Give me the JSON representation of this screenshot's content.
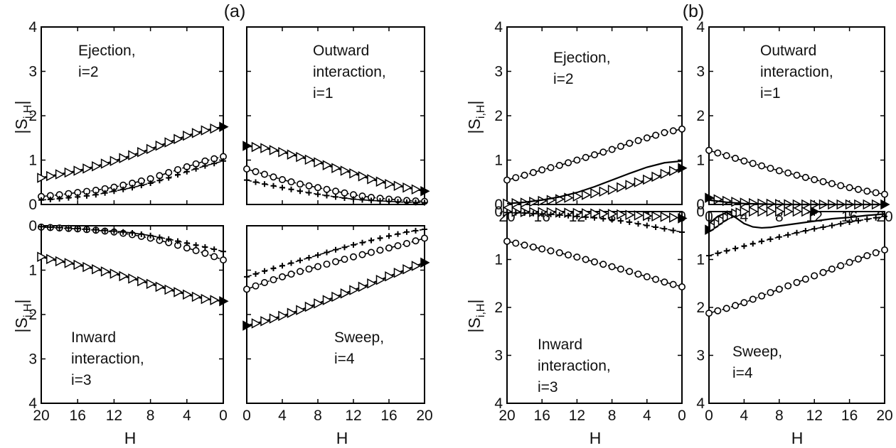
{
  "figure": {
    "panel_labels": [
      "(a)",
      "(b)"
    ],
    "ylabel_main": "|S",
    "ylabel_sub": "i,H",
    "ylabel_tail": "|",
    "xlabel": "H"
  },
  "chart_data": [
    {
      "type": "line",
      "group": "(a)",
      "quadrant": "Ejection",
      "annotation": [
        "Ejection,",
        "i=2"
      ],
      "xlim": [
        20,
        0
      ],
      "ylim": [
        0,
        4
      ],
      "xticks": [],
      "yticks": [
        "0",
        "1",
        "2",
        "3",
        "4"
      ],
      "series": [
        {
          "marker": "triangle",
          "line": "solid",
          "x": [
            20,
            18,
            16,
            14,
            12,
            10,
            8,
            6,
            4,
            2,
            0
          ],
          "y": [
            0.6,
            0.68,
            0.76,
            0.86,
            0.98,
            1.11,
            1.25,
            1.4,
            1.55,
            1.67,
            1.75
          ]
        },
        {
          "marker": "circle",
          "line": "dashdot",
          "x": [
            20,
            18,
            16,
            14,
            12,
            10,
            8,
            6,
            4,
            2,
            0
          ],
          "y": [
            0.18,
            0.22,
            0.27,
            0.32,
            0.39,
            0.48,
            0.58,
            0.72,
            0.85,
            0.98,
            1.08
          ]
        },
        {
          "marker": "plus",
          "line": "dashed",
          "x": [
            20,
            18,
            16,
            14,
            12,
            10,
            8,
            6,
            4,
            2,
            0
          ],
          "y": [
            0.1,
            0.13,
            0.17,
            0.22,
            0.3,
            0.38,
            0.48,
            0.6,
            0.74,
            0.87,
            0.98
          ]
        }
      ]
    },
    {
      "type": "line",
      "group": "(a)",
      "quadrant": "Outward interaction",
      "annotation": [
        "Outward",
        "interaction,",
        "i=1"
      ],
      "xlim": [
        0,
        20
      ],
      "ylim": [
        0,
        4
      ],
      "xticks": [],
      "yticks": [],
      "series": [
        {
          "marker": "triangle",
          "line": "solid",
          "x": [
            0,
            2,
            4,
            6,
            8,
            10,
            12,
            14,
            16,
            18,
            20
          ],
          "y": [
            1.32,
            1.27,
            1.18,
            1.07,
            0.95,
            0.82,
            0.7,
            0.57,
            0.46,
            0.38,
            0.3
          ]
        },
        {
          "marker": "circle",
          "line": "dashdot",
          "x": [
            0,
            2,
            4,
            6,
            8,
            10,
            12,
            14,
            16,
            18,
            20
          ],
          "y": [
            0.8,
            0.68,
            0.56,
            0.46,
            0.38,
            0.3,
            0.22,
            0.16,
            0.12,
            0.09,
            0.07
          ]
        },
        {
          "marker": "plus",
          "line": "dashed",
          "x": [
            0,
            2,
            4,
            6,
            8,
            10,
            12,
            14,
            16,
            18,
            20
          ],
          "y": [
            0.55,
            0.46,
            0.38,
            0.3,
            0.23,
            0.17,
            0.12,
            0.09,
            0.07,
            0.05,
            0.04
          ]
        }
      ]
    },
    {
      "type": "line",
      "group": "(a)",
      "quadrant": "Inward interaction",
      "annotation": [
        "Inward",
        "interaction,",
        "i=3"
      ],
      "xlim": [
        20,
        0
      ],
      "ylim": [
        0,
        4
      ],
      "y_inverted": true,
      "xticks": [
        "20",
        "16",
        "12",
        "8",
        "4",
        "0"
      ],
      "yticks": [
        "0",
        "1",
        "2",
        "3",
        "4"
      ],
      "series": [
        {
          "marker": "triangle",
          "line": "solid",
          "x": [
            20,
            18,
            16,
            14,
            12,
            10,
            8,
            6,
            4,
            2,
            0
          ],
          "y": [
            0.7,
            0.8,
            0.88,
            0.98,
            1.08,
            1.19,
            1.31,
            1.44,
            1.55,
            1.65,
            1.7
          ]
        },
        {
          "marker": "circle",
          "line": "dashdot",
          "x": [
            20,
            18,
            16,
            14,
            12,
            10,
            8,
            6,
            4,
            2,
            0
          ],
          "y": [
            0.03,
            0.05,
            0.07,
            0.1,
            0.14,
            0.2,
            0.28,
            0.38,
            0.5,
            0.62,
            0.77
          ]
        },
        {
          "marker": "plus",
          "line": "dashed",
          "x": [
            20,
            18,
            16,
            14,
            12,
            10,
            8,
            6,
            4,
            2,
            0
          ],
          "y": [
            0.02,
            0.04,
            0.06,
            0.09,
            0.12,
            0.16,
            0.22,
            0.3,
            0.39,
            0.48,
            0.58
          ]
        }
      ]
    },
    {
      "type": "line",
      "group": "(a)",
      "quadrant": "Sweep",
      "annotation": [
        "Sweep,",
        "i=4"
      ],
      "xlim": [
        0,
        20
      ],
      "ylim": [
        0,
        4
      ],
      "y_inverted": true,
      "xticks": [
        "0",
        "4",
        "8",
        "12",
        "16",
        "20"
      ],
      "yticks": [],
      "series": [
        {
          "marker": "triangle",
          "line": "solid",
          "x": [
            0,
            2,
            4,
            6,
            8,
            10,
            12,
            14,
            16,
            18,
            20
          ],
          "y": [
            2.25,
            2.15,
            2.03,
            1.9,
            1.75,
            1.6,
            1.45,
            1.3,
            1.14,
            0.98,
            0.83
          ]
        },
        {
          "marker": "circle",
          "line": "dashdot",
          "x": [
            0,
            2,
            4,
            6,
            8,
            10,
            12,
            14,
            16,
            18,
            20
          ],
          "y": [
            1.43,
            1.28,
            1.15,
            1.03,
            0.92,
            0.81,
            0.7,
            0.6,
            0.5,
            0.4,
            0.28
          ]
        },
        {
          "marker": "plus",
          "line": "dashed",
          "x": [
            0,
            2,
            4,
            6,
            8,
            10,
            12,
            14,
            16,
            18,
            20
          ],
          "y": [
            1.15,
            1.02,
            0.9,
            0.78,
            0.66,
            0.54,
            0.43,
            0.33,
            0.23,
            0.14,
            0.08
          ]
        }
      ]
    },
    {
      "type": "line",
      "group": "(b)",
      "quadrant": "Ejection",
      "annotation": [
        "Ejection,",
        "i=2"
      ],
      "xlim": [
        20,
        0
      ],
      "ylim": [
        0,
        4
      ],
      "xticks": [
        "20",
        "16",
        "12",
        "8",
        "4",
        "0"
      ],
      "yticks": [
        "0",
        "1",
        "2",
        "3",
        "4"
      ],
      "series": [
        {
          "marker": "triangle",
          "line": "dashed",
          "x": [
            20,
            18,
            16,
            14,
            12,
            10,
            8,
            6,
            4,
            2,
            0
          ],
          "y": [
            0.02,
            0.04,
            0.08,
            0.12,
            0.18,
            0.25,
            0.33,
            0.44,
            0.56,
            0.69,
            0.82
          ]
        },
        {
          "marker": "circle",
          "line": "dashdot",
          "x": [
            20,
            18,
            16,
            14,
            12,
            10,
            8,
            6,
            4,
            2,
            0
          ],
          "y": [
            0.55,
            0.66,
            0.78,
            0.88,
            1.0,
            1.12,
            1.24,
            1.38,
            1.5,
            1.62,
            1.7
          ]
        },
        {
          "marker": "none",
          "line": "solid",
          "x": [
            20,
            18,
            16,
            14,
            12,
            10,
            8,
            6,
            4,
            2,
            0
          ],
          "y": [
            0.02,
            0.05,
            0.1,
            0.17,
            0.27,
            0.4,
            0.55,
            0.7,
            0.84,
            0.94,
            0.98
          ]
        }
      ]
    },
    {
      "type": "line",
      "group": "(b)",
      "quadrant": "Outward interaction",
      "annotation": [
        "Outward",
        "interaction,",
        "i=1"
      ],
      "xlim": [
        0,
        20
      ],
      "ylim": [
        0,
        4
      ],
      "xticks": [
        "0",
        "4",
        "8",
        "12",
        "16",
        "20"
      ],
      "yticks": [
        "0",
        "1",
        "2",
        "3",
        "4"
      ],
      "series": [
        {
          "marker": "triangle",
          "line": "dashed",
          "x": [
            0,
            2,
            4,
            6,
            8,
            10,
            12,
            14,
            16,
            18,
            20
          ],
          "y": [
            0.15,
            0.08,
            0.04,
            0.02,
            0.01,
            0.0,
            0.0,
            0.0,
            0.0,
            0.0,
            0.0
          ]
        },
        {
          "marker": "circle",
          "line": "dashdot",
          "x": [
            0,
            2,
            4,
            6,
            8,
            10,
            12,
            14,
            16,
            18,
            20
          ],
          "y": [
            1.22,
            1.1,
            0.98,
            0.87,
            0.76,
            0.66,
            0.56,
            0.47,
            0.38,
            0.3,
            0.23
          ]
        },
        {
          "marker": "none",
          "line": "solid",
          "x": [
            0,
            2,
            4,
            6,
            8,
            10,
            12,
            14,
            16,
            18,
            20
          ],
          "y": [
            0.1,
            0.05,
            0.02,
            0.01,
            0.0,
            0.0,
            0.0,
            0.0,
            0.0,
            0.0,
            0.0
          ]
        }
      ]
    },
    {
      "type": "line",
      "group": "(b)",
      "quadrant": "Inward interaction",
      "annotation": [
        "Inward",
        "interaction,",
        "i=3"
      ],
      "xlim": [
        20,
        0
      ],
      "ylim": [
        0,
        4
      ],
      "y_inverted": true,
      "xticks": [
        "20",
        "16",
        "12",
        "8",
        "4",
        "0"
      ],
      "yticks": [
        "0",
        "1",
        "2",
        "3",
        "4"
      ],
      "series": [
        {
          "marker": "triangle",
          "line": "dashed",
          "x": [
            20,
            18,
            16,
            14,
            12,
            10,
            8,
            6,
            4,
            2,
            0
          ],
          "y": [
            0.0,
            0.01,
            0.01,
            0.02,
            0.03,
            0.04,
            0.05,
            0.07,
            0.09,
            0.11,
            0.14
          ]
        },
        {
          "marker": "circle",
          "line": "dashdot",
          "x": [
            20,
            18,
            16,
            14,
            12,
            10,
            8,
            6,
            4,
            2,
            0
          ],
          "y": [
            0.62,
            0.7,
            0.78,
            0.86,
            0.95,
            1.05,
            1.15,
            1.25,
            1.36,
            1.47,
            1.57
          ]
        },
        {
          "marker": "plus",
          "line": "dashed",
          "x": [
            20,
            18,
            16,
            14,
            12,
            10,
            8,
            6,
            4,
            2,
            0
          ],
          "y": [
            0.02,
            0.03,
            0.05,
            0.07,
            0.1,
            0.13,
            0.17,
            0.22,
            0.29,
            0.36,
            0.43
          ]
        }
      ]
    },
    {
      "type": "line",
      "group": "(b)",
      "quadrant": "Sweep",
      "annotation": [
        "Sweep,",
        "i=4"
      ],
      "xlim": [
        0,
        20
      ],
      "ylim": [
        0,
        4
      ],
      "y_inverted": true,
      "xticks": [
        "0",
        "4",
        "8",
        "12",
        "16",
        "20"
      ],
      "yticks": [
        "0",
        "1",
        "2",
        "3",
        "4"
      ],
      "series": [
        {
          "marker": "triangle",
          "line": "dashed",
          "x": [
            0,
            1,
            2,
            3,
            4,
            6,
            8,
            10,
            12
          ],
          "y": [
            0.38,
            0.25,
            0.12,
            0.04,
            0.0,
            0.0,
            0.0,
            0.0,
            0.0
          ]
        },
        {
          "marker": "circle",
          "line": "dashdot",
          "x": [
            0,
            2,
            4,
            6,
            8,
            10,
            12,
            14,
            16,
            18,
            20
          ],
          "y": [
            2.12,
            2.02,
            1.9,
            1.76,
            1.62,
            1.48,
            1.34,
            1.2,
            1.06,
            0.92,
            0.8
          ]
        },
        {
          "marker": "plus",
          "line": "dashed",
          "x": [
            0,
            2,
            4,
            6,
            8,
            10,
            12,
            14,
            16,
            18,
            20
          ],
          "y": [
            0.92,
            0.82,
            0.72,
            0.62,
            0.53,
            0.44,
            0.36,
            0.29,
            0.22,
            0.16,
            0.1
          ]
        },
        {
          "marker": "none",
          "line": "solid",
          "x": [
            0,
            1,
            2,
            3,
            4,
            5,
            6,
            7,
            8,
            10,
            12,
            14,
            16,
            18,
            20
          ],
          "y": [
            0.25,
            0.1,
            0.02,
            0.12,
            0.25,
            0.32,
            0.34,
            0.33,
            0.3,
            0.25,
            0.2,
            0.15,
            0.12,
            0.08,
            0.05
          ]
        }
      ]
    }
  ]
}
